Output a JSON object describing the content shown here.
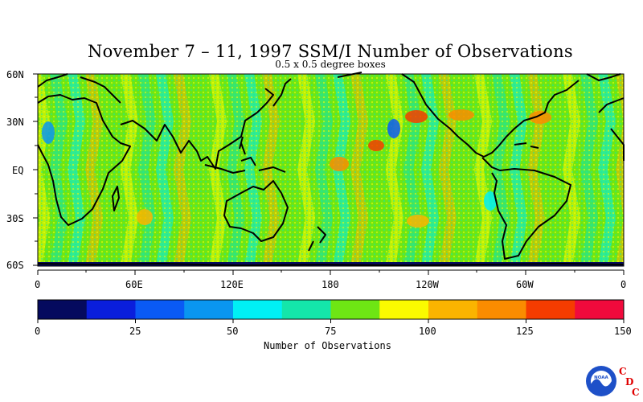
{
  "title": "November 7 – 11, 1997 SSM/I Number of Observations",
  "subtitle": "0.5 x 0.5 degree boxes",
  "map": {
    "lat_labels": [
      "60N",
      "30N",
      "EQ",
      "30S",
      "60S"
    ],
    "lon_labels": [
      "0",
      "60E",
      "120E",
      "180",
      "120W",
      "60W",
      "0"
    ]
  },
  "colorbar": {
    "title": "Number of Observations",
    "tick_labels": [
      "0",
      "25",
      "50",
      "75",
      "100",
      "125",
      "150"
    ],
    "colors": [
      "#050a5e",
      "#0a1edc",
      "#0a5af5",
      "#0a96f0",
      "#00f0f5",
      "#14e6aa",
      "#6ee614",
      "#fafa00",
      "#fab400",
      "#fa8c00",
      "#f53c00",
      "#f00a3c"
    ]
  },
  "logo": {
    "name": "noaa-logo",
    "letters": [
      "C",
      "D",
      "C"
    ],
    "inner_text": "NOAA"
  }
}
